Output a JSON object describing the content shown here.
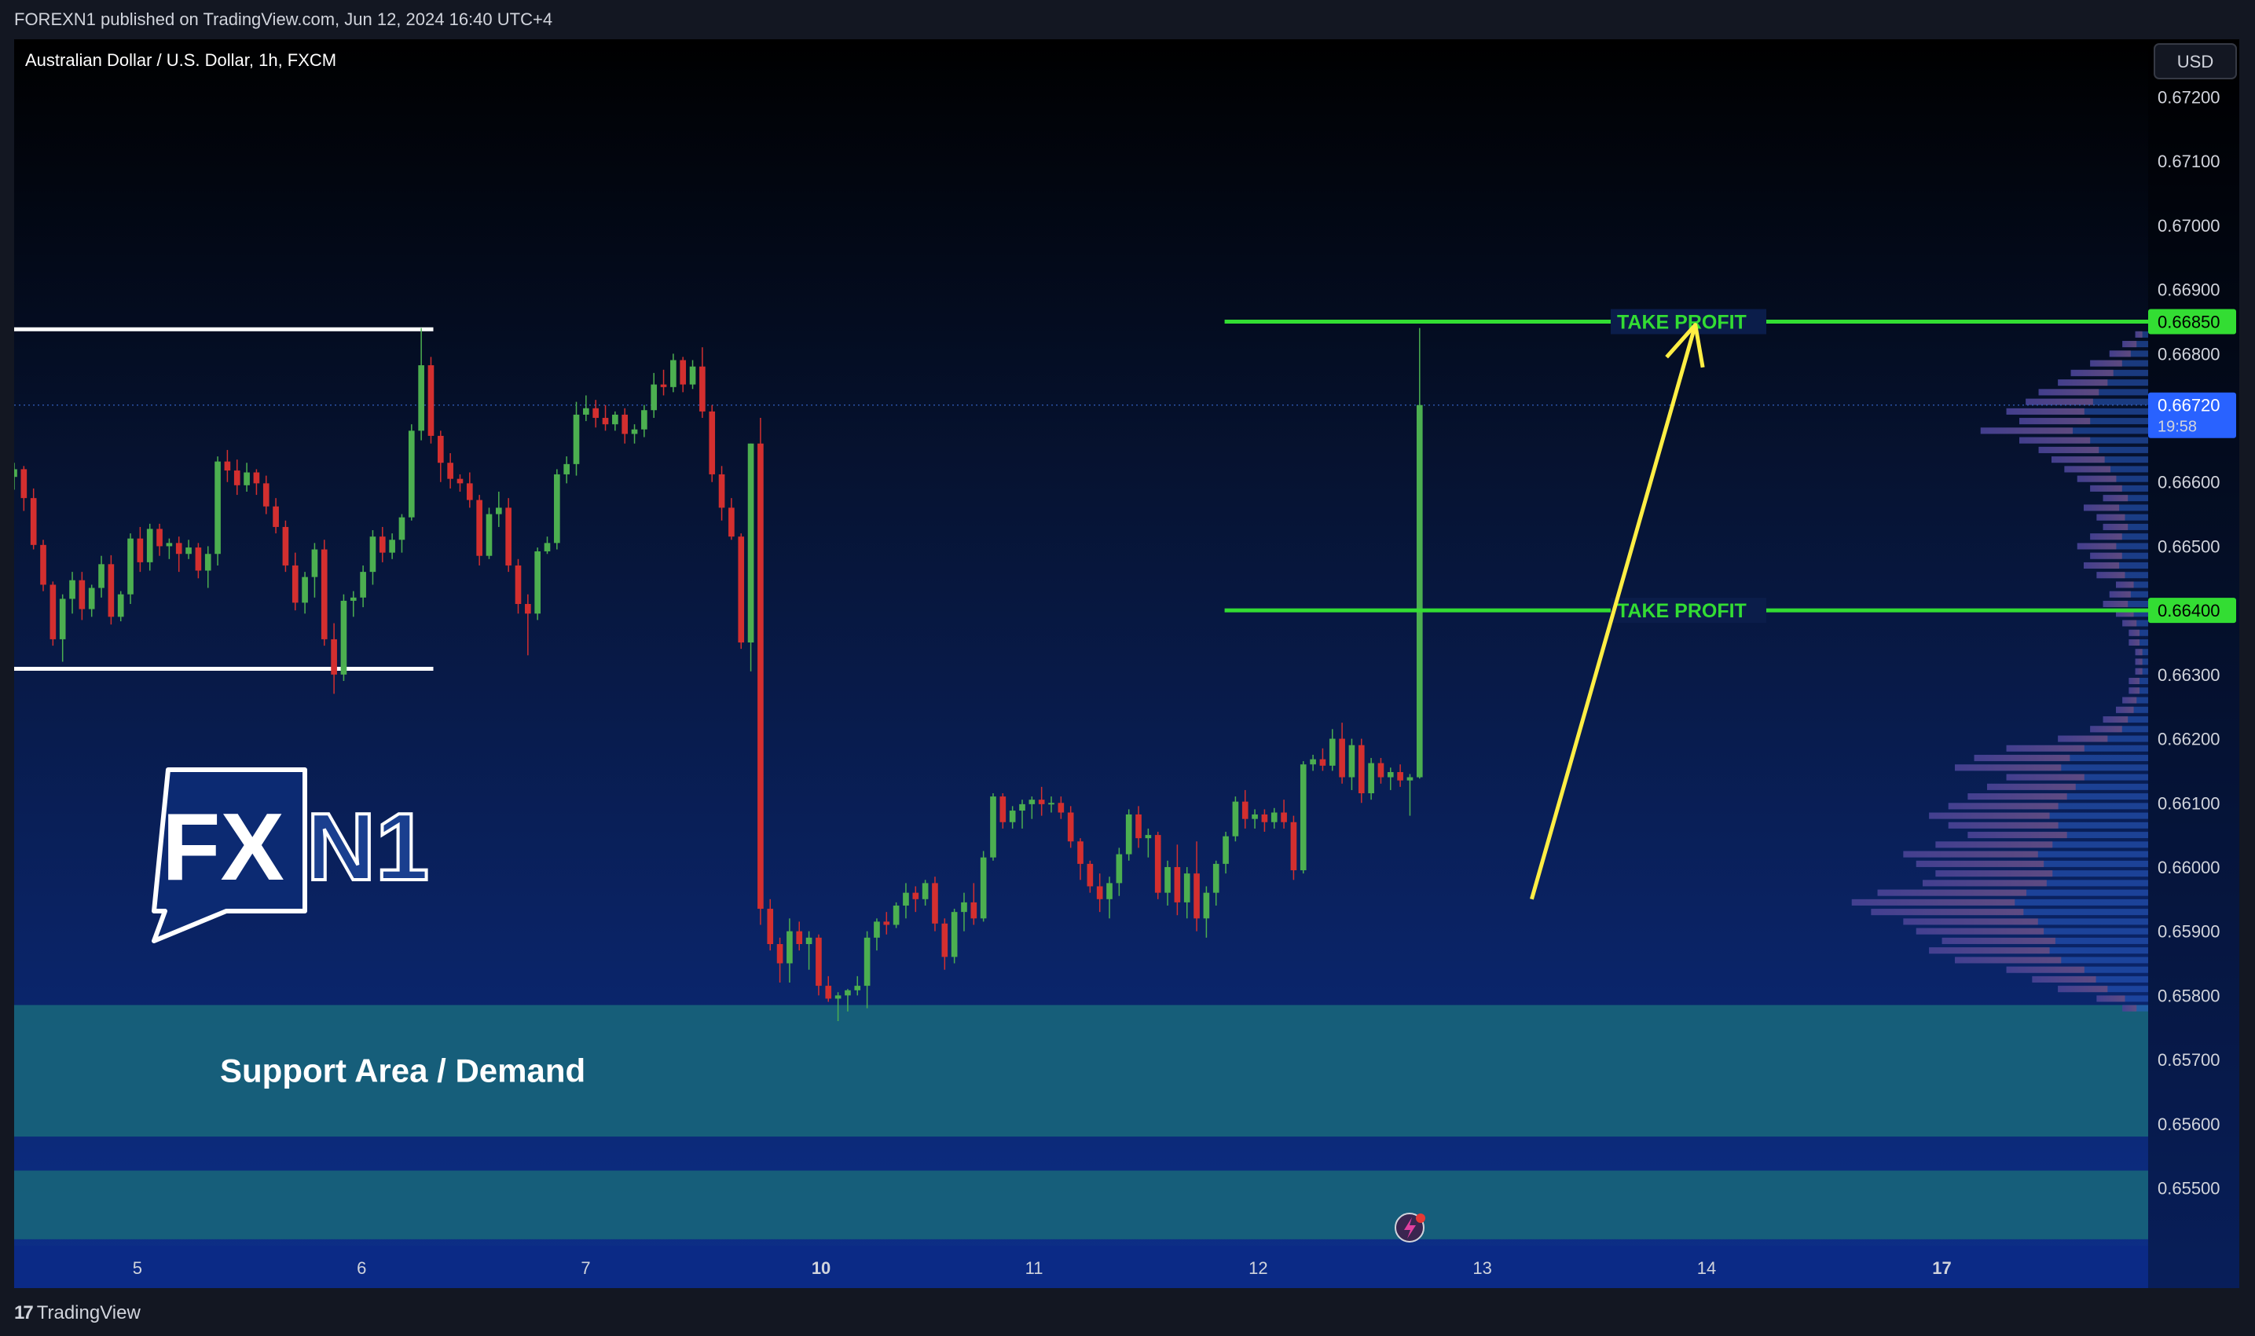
{
  "header": {
    "published": "FOREXN1 published on TradingView.com, Jun 12, 2024 16:40 UTC+4"
  },
  "footer": {
    "brand": "TradingView",
    "brand_mark": "17"
  },
  "colors": {
    "up": "#4caf50",
    "down": "#d32f2f",
    "target": "#33dd33",
    "arrow": "#ffee44",
    "support": "#17617a"
  },
  "chart_data": {
    "type": "candlestick",
    "symbol": "Australian Dollar / U.S. Dollar, 1h, FXCM",
    "currency": "USD",
    "ylim": [
      0.6541,
      0.6729
    ],
    "y_ticks": [
      "0.67200",
      "0.67100",
      "0.67000",
      "0.66900",
      "0.66800",
      "0.66600",
      "0.66500",
      "0.66300",
      "0.66200",
      "0.66100",
      "0.66000",
      "0.65900",
      "0.65800",
      "0.65700",
      "0.65600",
      "0.65500"
    ],
    "x_ticks": [
      {
        "label": "5",
        "bold": false,
        "x": 5
      },
      {
        "label": "6",
        "bold": false,
        "x": 6
      },
      {
        "label": "7",
        "bold": false,
        "x": 7
      },
      {
        "label": "10",
        "bold": true,
        "x": 8.05
      },
      {
        "label": "11",
        "bold": false,
        "x": 9
      },
      {
        "label": "12",
        "bold": false,
        "x": 10
      },
      {
        "label": "13",
        "bold": false,
        "x": 11
      },
      {
        "label": "14",
        "bold": false,
        "x": 12
      },
      {
        "label": "17",
        "bold": true,
        "x": 13.05
      }
    ],
    "xlim": [
      4.45,
      13.97
    ],
    "current_price": {
      "value": 0.6672,
      "label": "0.66720",
      "countdown": "19:58"
    },
    "targets": [
      {
        "value": 0.6685,
        "label": "0.66850",
        "text": "TAKE PROFIT",
        "from_x": 9.85
      },
      {
        "value": 0.664,
        "label": "0.66400",
        "text": "TAKE PROFIT",
        "from_x": 9.85
      }
    ],
    "range_lines": [
      {
        "value": 0.66838,
        "from_x": 4.45,
        "to_x": 6.32
      },
      {
        "value": 0.66309,
        "from_x": 4.45,
        "to_x": 6.32
      }
    ],
    "zones": [
      {
        "label": "Support Area / Demand",
        "top": 0.65785,
        "bottom": 0.6558
      },
      {
        "label": "",
        "top": 0.65527,
        "bottom": 0.6542
      }
    ],
    "arrow": {
      "from": [
        11.22,
        0.6595
      ],
      "to": [
        11.95,
        0.66845
      ]
    },
    "watermark": {
      "fx": "FX",
      "n1": "N1"
    },
    "candles": [
      [
        0.66608,
        0.6663,
        0.66588,
        0.6662
      ],
      [
        0.6662,
        0.66625,
        0.66555,
        0.66575
      ],
      [
        0.66575,
        0.6659,
        0.66495,
        0.66502
      ],
      [
        0.66502,
        0.6651,
        0.6643,
        0.6644
      ],
      [
        0.6644,
        0.66445,
        0.66345,
        0.66355
      ],
      [
        0.66355,
        0.66425,
        0.6632,
        0.66418
      ],
      [
        0.66418,
        0.6646,
        0.66395,
        0.66447
      ],
      [
        0.66447,
        0.6646,
        0.66385,
        0.66402
      ],
      [
        0.66402,
        0.6644,
        0.6639,
        0.66435
      ],
      [
        0.66435,
        0.66485,
        0.6642,
        0.66472
      ],
      [
        0.66472,
        0.66486,
        0.66378,
        0.6639
      ],
      [
        0.6639,
        0.6643,
        0.66383,
        0.66425
      ],
      [
        0.66425,
        0.6652,
        0.6641,
        0.66512
      ],
      [
        0.66512,
        0.6653,
        0.6646,
        0.66475
      ],
      [
        0.66475,
        0.66535,
        0.66462,
        0.66527
      ],
      [
        0.66527,
        0.66535,
        0.66485,
        0.665
      ],
      [
        0.665,
        0.66512,
        0.6648,
        0.66505
      ],
      [
        0.66505,
        0.66515,
        0.6646,
        0.66488
      ],
      [
        0.66488,
        0.6651,
        0.6648,
        0.66498
      ],
      [
        0.66498,
        0.66505,
        0.6645,
        0.66462
      ],
      [
        0.66462,
        0.665,
        0.66435,
        0.66488
      ],
      [
        0.66488,
        0.6664,
        0.6647,
        0.66632
      ],
      [
        0.66632,
        0.6665,
        0.666,
        0.66618
      ],
      [
        0.66618,
        0.66635,
        0.6658,
        0.66595
      ],
      [
        0.66595,
        0.6663,
        0.66585,
        0.66615
      ],
      [
        0.66615,
        0.6662,
        0.6658,
        0.66598
      ],
      [
        0.66598,
        0.6661,
        0.6655,
        0.66562
      ],
      [
        0.66562,
        0.66575,
        0.6652,
        0.6653
      ],
      [
        0.6653,
        0.6654,
        0.6646,
        0.6647
      ],
      [
        0.6647,
        0.6649,
        0.664,
        0.66412
      ],
      [
        0.66412,
        0.6646,
        0.66395,
        0.66452
      ],
      [
        0.66452,
        0.66505,
        0.6642,
        0.66495
      ],
      [
        0.66495,
        0.6651,
        0.66345,
        0.66355
      ],
      [
        0.66355,
        0.6638,
        0.6627,
        0.663
      ],
      [
        0.663,
        0.66425,
        0.6629,
        0.66415
      ],
      [
        0.66415,
        0.6643,
        0.6639,
        0.6642
      ],
      [
        0.6642,
        0.6647,
        0.66405,
        0.6646
      ],
      [
        0.6646,
        0.66525,
        0.6644,
        0.66515
      ],
      [
        0.66515,
        0.6653,
        0.66475,
        0.6649
      ],
      [
        0.6649,
        0.6652,
        0.6648,
        0.6651
      ],
      [
        0.6651,
        0.6655,
        0.6649,
        0.66545
      ],
      [
        0.66545,
        0.6669,
        0.6654,
        0.6668
      ],
      [
        0.6668,
        0.6684,
        0.66665,
        0.66782
      ],
      [
        0.66782,
        0.66795,
        0.6666,
        0.66672
      ],
      [
        0.66672,
        0.6668,
        0.666,
        0.6663
      ],
      [
        0.6663,
        0.66645,
        0.6659,
        0.66605
      ],
      [
        0.66605,
        0.66612,
        0.66585,
        0.66598
      ],
      [
        0.66598,
        0.66615,
        0.6656,
        0.66572
      ],
      [
        0.66572,
        0.6658,
        0.6647,
        0.66485
      ],
      [
        0.66485,
        0.6656,
        0.6648,
        0.6655
      ],
      [
        0.6655,
        0.66585,
        0.6653,
        0.6656
      ],
      [
        0.6656,
        0.66575,
        0.6646,
        0.6647
      ],
      [
        0.6647,
        0.6648,
        0.66395,
        0.6641
      ],
      [
        0.6641,
        0.66425,
        0.6633,
        0.66395
      ],
      [
        0.66395,
        0.66498,
        0.66385,
        0.66492
      ],
      [
        0.66492,
        0.66515,
        0.66488,
        0.66505
      ],
      [
        0.66505,
        0.6662,
        0.66495,
        0.66612
      ],
      [
        0.66612,
        0.6664,
        0.66598,
        0.66628
      ],
      [
        0.66628,
        0.66725,
        0.6661,
        0.66705
      ],
      [
        0.66705,
        0.66735,
        0.66695,
        0.66715
      ],
      [
        0.66715,
        0.66728,
        0.66685,
        0.667
      ],
      [
        0.667,
        0.6672,
        0.6668,
        0.6669
      ],
      [
        0.6669,
        0.6671,
        0.6668,
        0.66705
      ],
      [
        0.66705,
        0.66715,
        0.6666,
        0.66675
      ],
      [
        0.66675,
        0.6669,
        0.6666,
        0.66682
      ],
      [
        0.66682,
        0.6672,
        0.6667,
        0.66712
      ],
      [
        0.66712,
        0.6677,
        0.667,
        0.66752
      ],
      [
        0.66752,
        0.66775,
        0.66735,
        0.66748
      ],
      [
        0.66748,
        0.668,
        0.6674,
        0.6679
      ],
      [
        0.6679,
        0.66795,
        0.6674,
        0.66752
      ],
      [
        0.66752,
        0.6679,
        0.66745,
        0.6678
      ],
      [
        0.6678,
        0.6681,
        0.667,
        0.6671
      ],
      [
        0.6671,
        0.6672,
        0.666,
        0.66612
      ],
      [
        0.66612,
        0.66625,
        0.6654,
        0.6656
      ],
      [
        0.6656,
        0.66575,
        0.6651,
        0.66515
      ],
      [
        0.66515,
        0.6652,
        0.6634,
        0.6635
      ],
      [
        0.6635,
        0.6666,
        0.66305,
        0.6666
      ],
      [
        0.6666,
        0.667,
        0.6591,
        0.65935
      ],
      [
        0.65935,
        0.6595,
        0.6587,
        0.6588
      ],
      [
        0.6588,
        0.6589,
        0.6582,
        0.6585
      ],
      [
        0.6585,
        0.6592,
        0.6582,
        0.659
      ],
      [
        0.659,
        0.65915,
        0.6587,
        0.6588
      ],
      [
        0.6588,
        0.659,
        0.6584,
        0.6589
      ],
      [
        0.6589,
        0.65895,
        0.658,
        0.65815
      ],
      [
        0.65815,
        0.6583,
        0.6579,
        0.65795
      ],
      [
        0.65795,
        0.65805,
        0.6576,
        0.658
      ],
      [
        0.658,
        0.6581,
        0.65775,
        0.65808
      ],
      [
        0.65808,
        0.6583,
        0.658,
        0.65815
      ],
      [
        0.65815,
        0.659,
        0.6578,
        0.6589
      ],
      [
        0.6589,
        0.6592,
        0.6587,
        0.65915
      ],
      [
        0.65915,
        0.6593,
        0.65895,
        0.6591
      ],
      [
        0.6591,
        0.65945,
        0.65905,
        0.6594
      ],
      [
        0.6594,
        0.65975,
        0.6592,
        0.6596
      ],
      [
        0.6596,
        0.6597,
        0.6593,
        0.6595
      ],
      [
        0.6595,
        0.6598,
        0.6594,
        0.65975
      ],
      [
        0.65975,
        0.65985,
        0.659,
        0.65912
      ],
      [
        0.65912,
        0.6592,
        0.6584,
        0.6586
      ],
      [
        0.6586,
        0.65935,
        0.6585,
        0.6593
      ],
      [
        0.6593,
        0.6596,
        0.659,
        0.65945
      ],
      [
        0.65945,
        0.65975,
        0.6591,
        0.6592
      ],
      [
        0.6592,
        0.66025,
        0.65915,
        0.66015
      ],
      [
        0.66015,
        0.66115,
        0.6601,
        0.6611
      ],
      [
        0.6611,
        0.66115,
        0.6606,
        0.6607
      ],
      [
        0.6607,
        0.66095,
        0.6606,
        0.66088
      ],
      [
        0.66088,
        0.66105,
        0.6606,
        0.66098
      ],
      [
        0.66098,
        0.6611,
        0.66075,
        0.66105
      ],
      [
        0.66105,
        0.66125,
        0.6608,
        0.66098
      ],
      [
        0.66098,
        0.6611,
        0.66085,
        0.661
      ],
      [
        0.661,
        0.6611,
        0.66075,
        0.66085
      ],
      [
        0.66085,
        0.66095,
        0.6603,
        0.6604
      ],
      [
        0.6604,
        0.66045,
        0.6598,
        0.66005
      ],
      [
        0.66005,
        0.6601,
        0.6596,
        0.6597
      ],
      [
        0.6597,
        0.6599,
        0.6593,
        0.6595
      ],
      [
        0.6595,
        0.65985,
        0.6592,
        0.65975
      ],
      [
        0.65975,
        0.6603,
        0.65955,
        0.6602
      ],
      [
        0.6602,
        0.6609,
        0.6601,
        0.66082
      ],
      [
        0.66082,
        0.66095,
        0.6603,
        0.66045
      ],
      [
        0.66045,
        0.6606,
        0.66015,
        0.6605
      ],
      [
        0.6605,
        0.66055,
        0.6595,
        0.6596
      ],
      [
        0.6596,
        0.6601,
        0.6594,
        0.66
      ],
      [
        0.66,
        0.66035,
        0.65925,
        0.65945
      ],
      [
        0.65945,
        0.66,
        0.6592,
        0.6599
      ],
      [
        0.6599,
        0.6604,
        0.659,
        0.6592
      ],
      [
        0.6592,
        0.6597,
        0.6589,
        0.6596
      ],
      [
        0.6596,
        0.6601,
        0.6594,
        0.66005
      ],
      [
        0.66005,
        0.66055,
        0.6599,
        0.66048
      ],
      [
        0.66048,
        0.6611,
        0.6604,
        0.66102
      ],
      [
        0.66102,
        0.6612,
        0.6606,
        0.66075
      ],
      [
        0.66075,
        0.6609,
        0.6606,
        0.66082
      ],
      [
        0.66082,
        0.6609,
        0.66055,
        0.6607
      ],
      [
        0.6607,
        0.66092,
        0.6606,
        0.66085
      ],
      [
        0.66085,
        0.66105,
        0.6606,
        0.6607
      ],
      [
        0.6607,
        0.6608,
        0.6598,
        0.65995
      ],
      [
        0.65995,
        0.66165,
        0.6599,
        0.6616
      ],
      [
        0.6616,
        0.66175,
        0.6615,
        0.66168
      ],
      [
        0.66168,
        0.66185,
        0.6615,
        0.66158
      ],
      [
        0.66158,
        0.66215,
        0.6615,
        0.662
      ],
      [
        0.662,
        0.66225,
        0.6613,
        0.6614
      ],
      [
        0.6614,
        0.662,
        0.6612,
        0.6619
      ],
      [
        0.6619,
        0.662,
        0.661,
        0.66115
      ],
      [
        0.66115,
        0.6617,
        0.66105,
        0.66162
      ],
      [
        0.66162,
        0.6617,
        0.6613,
        0.6614
      ],
      [
        0.6614,
        0.66155,
        0.6612,
        0.66148
      ],
      [
        0.66148,
        0.6616,
        0.66125,
        0.66135
      ],
      [
        0.66135,
        0.66145,
        0.6608,
        0.6614
      ],
      [
        0.6614,
        0.6684,
        0.66138,
        0.6672
      ]
    ],
    "volume_profile": [
      [
        0.6683,
        0.02
      ],
      [
        0.66815,
        0.04
      ],
      [
        0.668,
        0.06
      ],
      [
        0.66785,
        0.09
      ],
      [
        0.6677,
        0.12
      ],
      [
        0.66755,
        0.14
      ],
      [
        0.6674,
        0.17
      ],
      [
        0.66725,
        0.19
      ],
      [
        0.6671,
        0.22
      ],
      [
        0.66695,
        0.2
      ],
      [
        0.6668,
        0.26
      ],
      [
        0.66665,
        0.2
      ],
      [
        0.6665,
        0.17
      ],
      [
        0.66635,
        0.15
      ],
      [
        0.6662,
        0.13
      ],
      [
        0.66605,
        0.11
      ],
      [
        0.6659,
        0.09
      ],
      [
        0.66575,
        0.07
      ],
      [
        0.6656,
        0.1
      ],
      [
        0.66545,
        0.08
      ],
      [
        0.6653,
        0.07
      ],
      [
        0.66515,
        0.09
      ],
      [
        0.665,
        0.11
      ],
      [
        0.66485,
        0.09
      ],
      [
        0.6647,
        0.1
      ],
      [
        0.66455,
        0.08
      ],
      [
        0.6644,
        0.05
      ],
      [
        0.66425,
        0.06
      ],
      [
        0.6641,
        0.07
      ],
      [
        0.66395,
        0.05
      ],
      [
        0.6638,
        0.04
      ],
      [
        0.66365,
        0.03
      ],
      [
        0.6635,
        0.03
      ],
      [
        0.66335,
        0.02
      ],
      [
        0.6632,
        0.02
      ],
      [
        0.66305,
        0.02
      ],
      [
        0.6629,
        0.03
      ],
      [
        0.66275,
        0.03
      ],
      [
        0.6626,
        0.04
      ],
      [
        0.66245,
        0.05
      ],
      [
        0.6623,
        0.07
      ],
      [
        0.66215,
        0.09
      ],
      [
        0.662,
        0.14
      ],
      [
        0.66185,
        0.22
      ],
      [
        0.6617,
        0.27
      ],
      [
        0.66155,
        0.3
      ],
      [
        0.6614,
        0.22
      ],
      [
        0.66125,
        0.25
      ],
      [
        0.6611,
        0.28
      ],
      [
        0.66095,
        0.31
      ],
      [
        0.6608,
        0.34
      ],
      [
        0.66065,
        0.31
      ],
      [
        0.6605,
        0.28
      ],
      [
        0.66035,
        0.33
      ],
      [
        0.6602,
        0.38
      ],
      [
        0.66005,
        0.36
      ],
      [
        0.6599,
        0.33
      ],
      [
        0.65975,
        0.35
      ],
      [
        0.6596,
        0.42
      ],
      [
        0.65945,
        0.46
      ],
      [
        0.6593,
        0.43
      ],
      [
        0.65915,
        0.38
      ],
      [
        0.659,
        0.36
      ],
      [
        0.65885,
        0.32
      ],
      [
        0.6587,
        0.34
      ],
      [
        0.65855,
        0.3
      ],
      [
        0.6584,
        0.22
      ],
      [
        0.65825,
        0.18
      ],
      [
        0.6581,
        0.14
      ],
      [
        0.65795,
        0.08
      ],
      [
        0.6578,
        0.04
      ]
    ]
  }
}
